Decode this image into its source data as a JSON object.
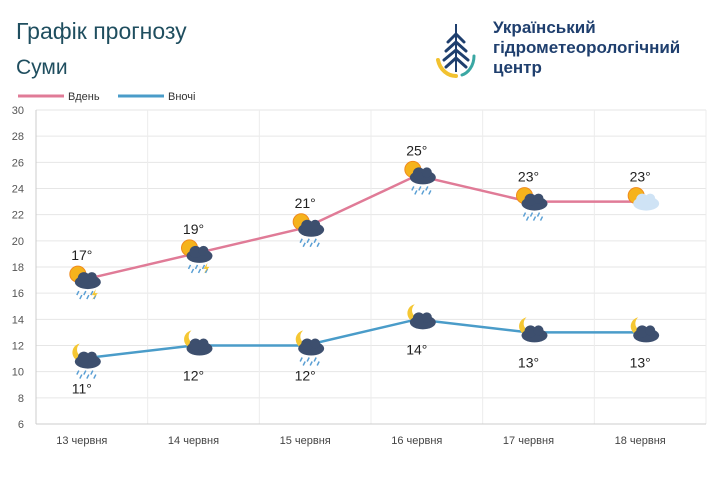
{
  "header": {
    "title": "Графік прогнозу",
    "city": "Суми",
    "org_lines": [
      "Український",
      "гідрометеорологічний",
      "центр"
    ]
  },
  "chart_data": {
    "type": "line",
    "categories": [
      "13 червня",
      "14 червня",
      "15 червня",
      "16 червня",
      "17 червня",
      "18 червня"
    ],
    "series": [
      {
        "name": "Вдень",
        "color": "#e07b97",
        "values": [
          17,
          19,
          21,
          25,
          23,
          23
        ],
        "labels": [
          "17°",
          "19°",
          "21°",
          "25°",
          "23°",
          "23°"
        ],
        "icons": [
          "sun-cloud-rain-thunder-icon",
          "sun-cloud-rain-thunder-icon",
          "sun-cloud-rain-icon",
          "sun-cloud-rain-icon",
          "sun-cloud-rain-icon",
          "sun-light-cloud-icon"
        ]
      },
      {
        "name": "Вночі",
        "color": "#4a9cc9",
        "values": [
          11,
          12,
          12,
          14,
          13,
          13
        ],
        "labels": [
          "11°",
          "12°",
          "12°",
          "14°",
          "13°",
          "13°"
        ],
        "icons": [
          "moon-cloud-rain-icon",
          "moon-cloud-icon",
          "moon-cloud-rain-icon",
          "moon-cloud-icon",
          "moon-cloud-icon",
          "moon-cloud-icon"
        ]
      }
    ],
    "ylim": [
      6,
      30
    ],
    "yticks": [
      "6",
      "8",
      "10",
      "12",
      "14",
      "16",
      "18",
      "20",
      "22",
      "24",
      "26",
      "28",
      "30"
    ],
    "grid": true,
    "legend": "top-left"
  }
}
